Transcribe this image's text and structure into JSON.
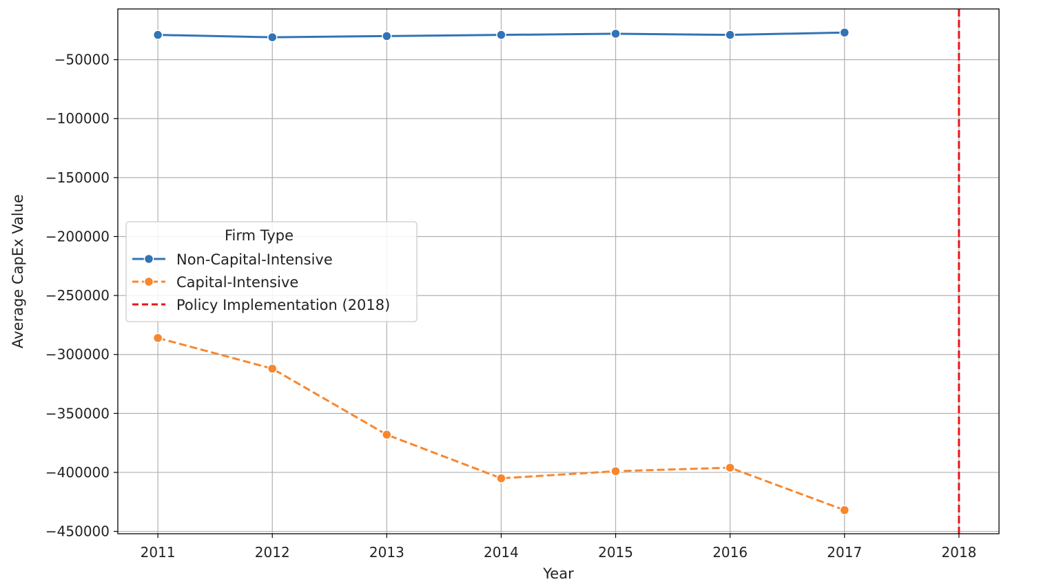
{
  "chart_data": {
    "type": "line",
    "xlabel": "Year",
    "ylabel": "Average CapEx Value",
    "x": [
      2011,
      2012,
      2013,
      2014,
      2015,
      2016,
      2017
    ],
    "x_ticks": [
      2011,
      2012,
      2013,
      2014,
      2015,
      2016,
      2017,
      2018
    ],
    "x_tick_labels": [
      "2011",
      "2012",
      "2013",
      "2014",
      "2015",
      "2016",
      "2017",
      "2018"
    ],
    "xlim": [
      2010.65,
      2018.35
    ],
    "y_ticks": [
      -50000,
      -100000,
      -150000,
      -200000,
      -250000,
      -300000,
      -350000,
      -400000,
      -450000
    ],
    "y_tick_labels": [
      "−50000",
      "−100000",
      "−150000",
      "−200000",
      "−250000",
      "−300000",
      "−350000",
      "−400000",
      "−450000"
    ],
    "ylim": [
      -452000,
      -7000
    ],
    "grid": true,
    "series": [
      {
        "name": "Non-Capital-Intensive",
        "color": "#3274b5",
        "line_style": "solid",
        "marker": "circle",
        "values": [
          -29000,
          -31000,
          -30000,
          -29000,
          -28000,
          -29000,
          -27000
        ]
      },
      {
        "name": "Capital-Intensive",
        "color": "#f8862d",
        "line_style": "dashed",
        "marker": "circle",
        "values": [
          -286000,
          -312000,
          -368000,
          -405000,
          -399000,
          -396000,
          -432000
        ]
      }
    ],
    "reference_lines": [
      {
        "name": "Policy Implementation (2018)",
        "x": 2018,
        "color": "#e8161b",
        "line_style": "dashed"
      }
    ],
    "legend": {
      "title": "Firm Type",
      "placement": "center-left"
    }
  }
}
